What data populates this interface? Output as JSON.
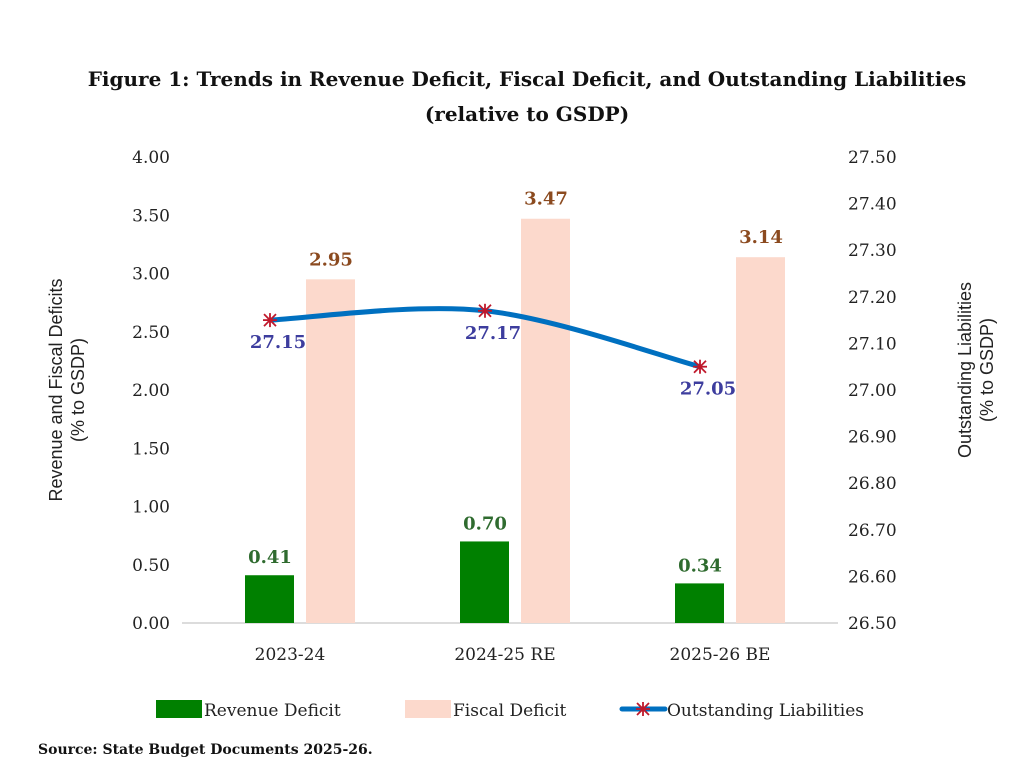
{
  "chart_data": {
    "type": "bar",
    "title": "Figure 1: Trends in Revenue Deficit, Fiscal Deficit, and Outstanding Liabilities",
    "subtitle": "(relative to GSDP)",
    "categories": [
      "2023-24",
      "2024-25 RE",
      "2025-26 BE"
    ],
    "series": [
      {
        "name": "Revenue Deficit",
        "type": "bar",
        "axis": "left",
        "color": "#008000",
        "label_color": "#2f6b2f",
        "values": [
          0.41,
          0.7,
          0.34
        ],
        "labels": [
          "0.41",
          "0.70",
          "0.34"
        ]
      },
      {
        "name": "Fiscal Deficit",
        "type": "bar",
        "axis": "left",
        "color": "#fcd9cc",
        "label_color": "#8b4a1f",
        "values": [
          2.95,
          3.47,
          3.14
        ],
        "labels": [
          "2.95",
          "3.47",
          "3.14"
        ]
      },
      {
        "name": "Outstanding Liabilities",
        "type": "line",
        "axis": "right",
        "color": "#0070c0",
        "marker_color": "#c0182b",
        "label_color": "#3d3d9e",
        "values": [
          27.15,
          27.17,
          27.05
        ],
        "labels": [
          "27.15",
          "27.17",
          "27.05"
        ]
      }
    ],
    "ylabel": "Revenue and Fiscal Deficits",
    "ylabel_sub": "(% to GSDP)",
    "ylim": [
      0,
      4
    ],
    "yticks": [
      "0.00",
      "0.50",
      "1.00",
      "1.50",
      "2.00",
      "2.50",
      "3.00",
      "3.50",
      "4.00"
    ],
    "y2label": "Outstanding Liabilities",
    "y2label_sub": "(% to GSDP)",
    "y2lim": [
      26.5,
      27.5
    ],
    "y2ticks": [
      "26.50",
      "26.60",
      "26.70",
      "26.80",
      "26.90",
      "27.00",
      "27.10",
      "27.20",
      "27.30",
      "27.40",
      "27.50"
    ],
    "grid": false,
    "legend": "bottom",
    "source": "Source: State Budget Documents 2025-26."
  }
}
